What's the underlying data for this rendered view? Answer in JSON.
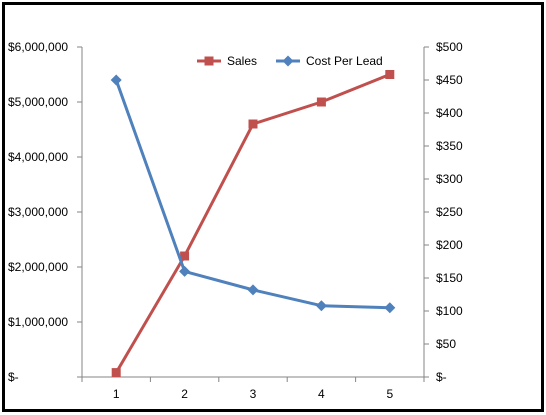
{
  "chart_data": {
    "type": "line",
    "categories": [
      "1",
      "2",
      "3",
      "4",
      "5"
    ],
    "series": [
      {
        "name": "Sales",
        "axis": "left",
        "color": "#c0504d",
        "marker": "square",
        "values": [
          80000,
          2200000,
          4600000,
          5000000,
          5500000
        ]
      },
      {
        "name": "Cost Per Lead",
        "axis": "right",
        "color": "#4f81bd",
        "marker": "diamond",
        "values": [
          450,
          160,
          132,
          108,
          105
        ]
      }
    ],
    "left_axis": {
      "min": 0,
      "max": 6000000,
      "ticks": [
        0,
        1000000,
        2000000,
        3000000,
        4000000,
        5000000,
        6000000
      ],
      "tick_labels": [
        "$-",
        "$1,000,000",
        "$2,000,000",
        "$3,000,000",
        "$4,000,000",
        "$5,000,000",
        "$6,000,000"
      ]
    },
    "right_axis": {
      "min": 0,
      "max": 500,
      "ticks": [
        0,
        50,
        100,
        150,
        200,
        250,
        300,
        350,
        400,
        450,
        500
      ],
      "tick_labels": [
        "$-",
        "$50",
        "$100",
        "$150",
        "$200",
        "$250",
        "$300",
        "$350",
        "$400",
        "$450",
        "$500"
      ]
    },
    "legend": {
      "position": "top-right",
      "entries": [
        "Sales",
        "Cost Per Lead"
      ]
    },
    "grid": false,
    "title": "",
    "xlabel": "",
    "ylabel": ""
  }
}
